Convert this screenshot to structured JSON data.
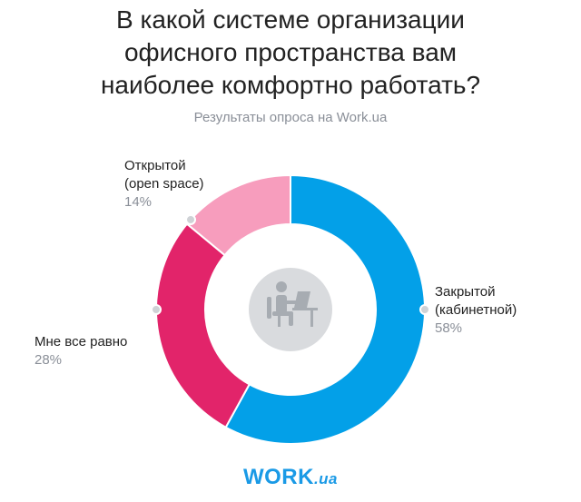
{
  "title": "В какой системе организации\nофисного пространства вам\nнаиболее комфортно работать?",
  "subtitle": "Результаты опроса на Work.ua",
  "logo": {
    "main": "WORK",
    "suffix": ".ua"
  },
  "colors": {
    "closed": "#03a0e8",
    "indifferent": "#e2246a",
    "open": "#f79dbd",
    "center_circle": "#d9dbde",
    "center_icon": "#a7acb2",
    "marker": "#cfd2d6",
    "logo": "#1a9ae6"
  },
  "chart_data": {
    "type": "pie",
    "donut": true,
    "title": "В какой системе организации офисного пространства вам наиболее комфортно работать?",
    "slices": [
      {
        "key": "closed",
        "label_lines": [
          "Закрытой",
          "(кабинетной)"
        ],
        "value": 58,
        "display": "58%"
      },
      {
        "key": "indifferent",
        "label_lines": [
          "Мне все равно"
        ],
        "value": 28,
        "display": "28%"
      },
      {
        "key": "open",
        "label_lines": [
          "Открытой",
          "(open space)"
        ],
        "value": 14,
        "display": "14%"
      }
    ],
    "center_icon": "office-worker-icon"
  }
}
